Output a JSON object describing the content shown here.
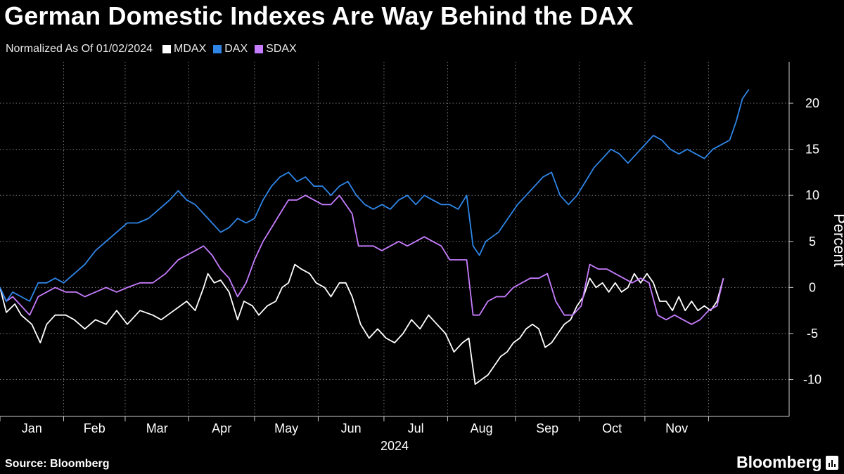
{
  "header": {
    "title": "German Domestic Indexes Are Way Behind the DAX",
    "subtitle": "Normalized As Of 01/02/2024"
  },
  "footer": {
    "source": "Source: Bloomberg",
    "brand": "Bloomberg"
  },
  "colors": {
    "background": "#000000",
    "mdax": "#ffffff",
    "dax": "#2f86e8",
    "sdax": "#c77dff",
    "grid": "#777777"
  },
  "chart_data": {
    "type": "line",
    "title": "German Domestic Indexes Are Way Behind the DAX",
    "subtitle": "Normalized As Of 01/02/2024",
    "xlabel": "2024",
    "ylabel": "Percent",
    "ylim": [
      -14,
      24.5
    ],
    "yticks": [
      -10,
      -5,
      0,
      5,
      10,
      15,
      20
    ],
    "months": [
      "Jan",
      "Feb",
      "Mar",
      "Apr",
      "May",
      "Jun",
      "Jul",
      "Aug",
      "Sep",
      "Oct",
      "Nov"
    ],
    "year_label": "2024",
    "grid": true,
    "legend_position": "top-left",
    "series": [
      {
        "name": "MDAX",
        "color": "#ffffff",
        "points": [
          [
            0,
            0
          ],
          [
            3,
            -2.7
          ],
          [
            7,
            -1.8
          ],
          [
            10,
            -3
          ],
          [
            15,
            -4
          ],
          [
            19,
            -6
          ],
          [
            22,
            -4
          ],
          [
            26,
            -3
          ],
          [
            31,
            -3
          ],
          [
            35,
            -3.5
          ],
          [
            40,
            -4.5
          ],
          [
            45,
            -3.5
          ],
          [
            50,
            -4
          ],
          [
            55,
            -2.5
          ],
          [
            60,
            -4
          ],
          [
            66,
            -2.5
          ],
          [
            72,
            -3
          ],
          [
            76,
            -3.5
          ],
          [
            82,
            -2.5
          ],
          [
            88,
            -1.5
          ],
          [
            92,
            -2.5
          ],
          [
            96,
            0
          ],
          [
            98,
            1.5
          ],
          [
            101,
            0.5
          ],
          [
            104,
            0.8
          ],
          [
            108,
            -0.5
          ],
          [
            112,
            -3.5
          ],
          [
            115,
            -1.5
          ],
          [
            119,
            -2
          ],
          [
            122,
            -3
          ],
          [
            126,
            -2
          ],
          [
            130,
            -1.5
          ],
          [
            133,
            0
          ],
          [
            136,
            0.5
          ],
          [
            139,
            2.5
          ],
          [
            142,
            2
          ],
          [
            146,
            1.5
          ],
          [
            149,
            0.5
          ],
          [
            153,
            0
          ],
          [
            156,
            -1
          ],
          [
            160,
            0.5
          ],
          [
            163,
            0.5
          ],
          [
            166,
            -1
          ],
          [
            170,
            -4
          ],
          [
            174,
            -5.5
          ],
          [
            178,
            -4.5
          ],
          [
            182,
            -5.5
          ],
          [
            186,
            -6
          ],
          [
            190,
            -5
          ],
          [
            194,
            -3.5
          ],
          [
            198,
            -4.5
          ],
          [
            202,
            -3
          ],
          [
            206,
            -4
          ],
          [
            210,
            -5
          ],
          [
            214,
            -7
          ],
          [
            218,
            -6
          ],
          [
            221,
            -5.5
          ],
          [
            224,
            -10.5
          ],
          [
            227,
            -10
          ],
          [
            230,
            -9.5
          ],
          [
            233,
            -8.5
          ],
          [
            236,
            -7.5
          ],
          [
            239,
            -7
          ],
          [
            242,
            -6
          ],
          [
            245,
            -5.5
          ],
          [
            248,
            -4.5
          ],
          [
            251,
            -4
          ],
          [
            254,
            -4.5
          ],
          [
            257,
            -6.5
          ],
          [
            260,
            -6
          ],
          [
            263,
            -5
          ],
          [
            266,
            -4
          ],
          [
            269,
            -3.5
          ],
          [
            272,
            -2
          ],
          [
            275,
            -1
          ],
          [
            278,
            1
          ],
          [
            281,
            0
          ],
          [
            284,
            0.5
          ],
          [
            287,
            -0.5
          ],
          [
            290,
            0.5
          ],
          [
            293,
            -0.5
          ],
          [
            296,
            0
          ],
          [
            299,
            1.5
          ],
          [
            302,
            0.5
          ],
          [
            305,
            1.5
          ],
          [
            308,
            0.5
          ],
          [
            311,
            -1.5
          ],
          [
            314,
            -1.5
          ],
          [
            317,
            -2.5
          ],
          [
            320,
            -1
          ],
          [
            323,
            -2.5
          ],
          [
            326,
            -1.5
          ],
          [
            329,
            -2.5
          ],
          [
            332,
            -2
          ],
          [
            335,
            -2.5
          ],
          [
            338,
            -1.5
          ],
          [
            341,
            1
          ]
        ]
      },
      {
        "name": "DAX",
        "color": "#2f86e8",
        "points": [
          [
            0,
            0
          ],
          [
            3,
            -1.5
          ],
          [
            6,
            -0.5
          ],
          [
            10,
            -1
          ],
          [
            14,
            -1.5
          ],
          [
            18,
            0.5
          ],
          [
            22,
            0.5
          ],
          [
            26,
            1
          ],
          [
            30,
            0.5
          ],
          [
            35,
            1.5
          ],
          [
            40,
            2.5
          ],
          [
            45,
            4
          ],
          [
            50,
            5
          ],
          [
            55,
            6
          ],
          [
            60,
            7
          ],
          [
            65,
            7
          ],
          [
            70,
            7.5
          ],
          [
            75,
            8.5
          ],
          [
            80,
            9.5
          ],
          [
            84,
            10.5
          ],
          [
            88,
            9.5
          ],
          [
            92,
            9
          ],
          [
            96,
            8
          ],
          [
            100,
            7
          ],
          [
            104,
            6
          ],
          [
            108,
            6.5
          ],
          [
            112,
            7.5
          ],
          [
            116,
            7
          ],
          [
            120,
            7.5
          ],
          [
            124,
            9.5
          ],
          [
            128,
            11
          ],
          [
            132,
            12
          ],
          [
            136,
            12.5
          ],
          [
            140,
            11.5
          ],
          [
            144,
            12
          ],
          [
            148,
            11
          ],
          [
            152,
            11
          ],
          [
            156,
            10
          ],
          [
            160,
            11
          ],
          [
            164,
            11.5
          ],
          [
            168,
            10
          ],
          [
            172,
            9
          ],
          [
            176,
            8.5
          ],
          [
            180,
            9
          ],
          [
            184,
            8.5
          ],
          [
            188,
            9.5
          ],
          [
            192,
            10
          ],
          [
            196,
            9
          ],
          [
            200,
            10
          ],
          [
            204,
            9.5
          ],
          [
            208,
            9
          ],
          [
            212,
            9
          ],
          [
            216,
            8.5
          ],
          [
            220,
            10
          ],
          [
            223,
            4.5
          ],
          [
            226,
            3.5
          ],
          [
            229,
            5
          ],
          [
            232,
            5.5
          ],
          [
            235,
            6
          ],
          [
            238,
            7
          ],
          [
            241,
            8
          ],
          [
            244,
            9
          ],
          [
            248,
            10
          ],
          [
            252,
            11
          ],
          [
            256,
            12
          ],
          [
            260,
            12.5
          ],
          [
            264,
            10
          ],
          [
            268,
            9
          ],
          [
            272,
            10
          ],
          [
            276,
            11.5
          ],
          [
            280,
            13
          ],
          [
            284,
            14
          ],
          [
            288,
            15
          ],
          [
            292,
            14.5
          ],
          [
            296,
            13.5
          ],
          [
            300,
            14.5
          ],
          [
            304,
            15.5
          ],
          [
            308,
            16.5
          ],
          [
            312,
            16
          ],
          [
            316,
            15
          ],
          [
            320,
            14.5
          ],
          [
            324,
            15
          ],
          [
            328,
            14.5
          ],
          [
            332,
            14
          ],
          [
            336,
            15
          ],
          [
            340,
            15.5
          ],
          [
            344,
            16
          ],
          [
            347,
            18
          ],
          [
            350,
            20.5
          ],
          [
            353,
            21.5
          ]
        ]
      },
      {
        "name": "SDAX",
        "color": "#c77dff",
        "points": [
          [
            0,
            0
          ],
          [
            3,
            -1.5
          ],
          [
            6,
            -1
          ],
          [
            10,
            -2
          ],
          [
            14,
            -3
          ],
          [
            18,
            -1
          ],
          [
            22,
            -0.5
          ],
          [
            26,
            0
          ],
          [
            31,
            -0.5
          ],
          [
            36,
            -0.5
          ],
          [
            40,
            -1
          ],
          [
            45,
            -0.5
          ],
          [
            50,
            0
          ],
          [
            55,
            -0.5
          ],
          [
            60,
            0
          ],
          [
            66,
            0.5
          ],
          [
            72,
            0.5
          ],
          [
            78,
            1.5
          ],
          [
            84,
            3
          ],
          [
            88,
            3.5
          ],
          [
            92,
            4
          ],
          [
            96,
            4.5
          ],
          [
            100,
            3.5
          ],
          [
            104,
            2
          ],
          [
            108,
            1
          ],
          [
            112,
            -1
          ],
          [
            116,
            0.5
          ],
          [
            120,
            3
          ],
          [
            124,
            5
          ],
          [
            128,
            6.5
          ],
          [
            132,
            8
          ],
          [
            136,
            9.5
          ],
          [
            140,
            9.5
          ],
          [
            144,
            10
          ],
          [
            148,
            9.5
          ],
          [
            152,
            9
          ],
          [
            156,
            9
          ],
          [
            160,
            10
          ],
          [
            163,
            9
          ],
          [
            166,
            8
          ],
          [
            169,
            4.5
          ],
          [
            172,
            4.5
          ],
          [
            176,
            4.5
          ],
          [
            180,
            4
          ],
          [
            184,
            4.5
          ],
          [
            188,
            5
          ],
          [
            192,
            4.5
          ],
          [
            196,
            5
          ],
          [
            200,
            5.5
          ],
          [
            204,
            5
          ],
          [
            208,
            4.5
          ],
          [
            212,
            3
          ],
          [
            216,
            3
          ],
          [
            220,
            3
          ],
          [
            223,
            -3
          ],
          [
            226,
            -3
          ],
          [
            230,
            -1.5
          ],
          [
            234,
            -1
          ],
          [
            238,
            -1
          ],
          [
            242,
            0
          ],
          [
            246,
            0.5
          ],
          [
            250,
            1
          ],
          [
            254,
            1
          ],
          [
            258,
            1.5
          ],
          [
            262,
            -1.5
          ],
          [
            266,
            -3
          ],
          [
            270,
            -3
          ],
          [
            274,
            -2
          ],
          [
            278,
            2.5
          ],
          [
            282,
            2
          ],
          [
            286,
            2
          ],
          [
            290,
            1.5
          ],
          [
            294,
            1
          ],
          [
            298,
            0.5
          ],
          [
            302,
            1
          ],
          [
            306,
            0.5
          ],
          [
            310,
            -3
          ],
          [
            314,
            -3.5
          ],
          [
            318,
            -3
          ],
          [
            322,
            -3.5
          ],
          [
            326,
            -4
          ],
          [
            330,
            -3.5
          ],
          [
            334,
            -2.5
          ],
          [
            338,
            -2
          ],
          [
            341,
            1
          ]
        ]
      }
    ]
  }
}
